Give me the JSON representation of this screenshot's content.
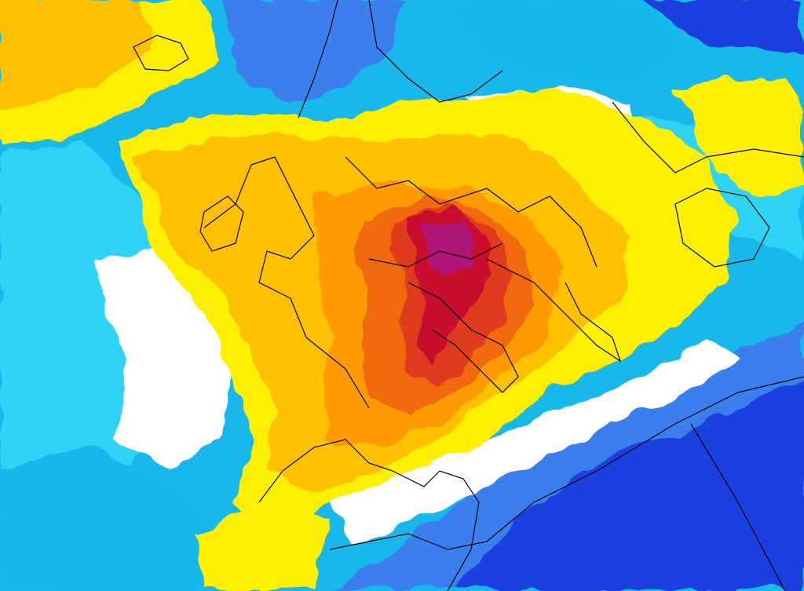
{
  "map": {
    "kind": "weather-anomaly-map",
    "projection": "rotated-polar",
    "colors": {
      "deep_blue": "#1f3fe0",
      "mid_blue": "#3a7fef",
      "light_blue": "#18b8ec",
      "cyan": "#2fd3f5",
      "white": "#ffffff",
      "yellow": "#ffef00",
      "light_orange": "#ffc000",
      "orange": "#ff9a00",
      "dark_orange": "#f06a10",
      "red_orange": "#e03a1c",
      "crimson": "#c8102e",
      "magenta": "#b0127a",
      "coastline": "#000000"
    },
    "legend": null
  }
}
